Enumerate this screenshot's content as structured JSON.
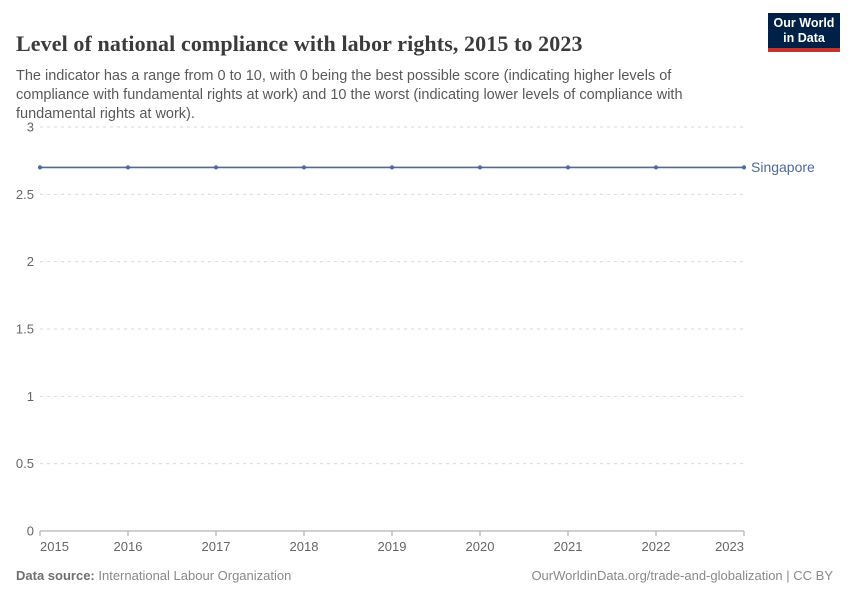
{
  "header": {
    "title": "Level of national compliance with labor rights, 2015 to 2023",
    "subtitle": "The indicator has a range from 0 to 10, with 0 being the best possible score (indicating higher levels of compliance with fundamental rights at work) and 10 the worst (indicating lower levels of compliance with fundamental rights at work).",
    "logo": {
      "line1": "Our World",
      "line2": "in Data"
    }
  },
  "chart_data": {
    "type": "line",
    "title": "Level of national compliance with labor rights, 2015 to 2023",
    "x": [
      2015,
      2016,
      2017,
      2018,
      2019,
      2020,
      2021,
      2022,
      2023
    ],
    "series": [
      {
        "name": "Singapore",
        "values": [
          2.7,
          2.7,
          2.7,
          2.7,
          2.7,
          2.7,
          2.7,
          2.7,
          2.7
        ],
        "color": "#4C6A9C"
      }
    ],
    "xlabel": "",
    "ylabel": "",
    "ylim": [
      0,
      3
    ],
    "yticks": [
      0,
      0.5,
      1,
      1.5,
      2,
      2.5,
      3
    ],
    "grid": "horizontal-dashed",
    "legend": "end-of-line-label"
  },
  "footer": {
    "datasource_label": "Data source:",
    "datasource_value": "International Labour Organization",
    "attribution": "OurWorldinData.org/trade-and-globalization | CC BY"
  },
  "colors": {
    "title": "#3b3b3b",
    "subtitle": "#595959",
    "axis_text": "#666666",
    "gridline": "#dadada",
    "axis_line": "#a1a1a1",
    "series_blue": "#4C6A9C",
    "logo_bg": "#002147",
    "logo_stripe": "#C5332D",
    "footer_text": "#898989"
  }
}
